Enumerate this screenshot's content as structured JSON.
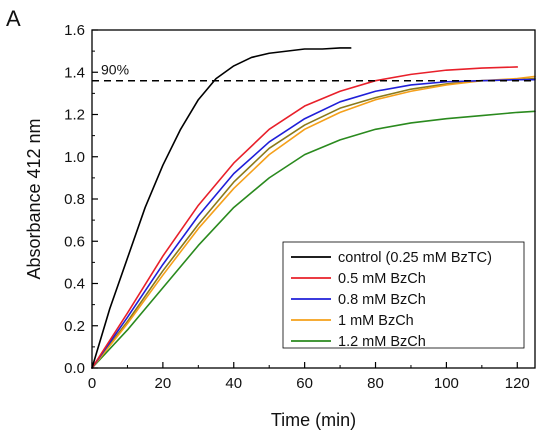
{
  "panel_label": "A",
  "chart_data": {
    "type": "line",
    "xlabel": "Time (min)",
    "ylabel": "Absorbance 412 nm",
    "xlim": [
      0,
      125
    ],
    "ylim": [
      0.0,
      1.6
    ],
    "xticks": [
      0,
      20,
      40,
      60,
      80,
      100,
      120
    ],
    "yticks": [
      0.0,
      0.2,
      0.4,
      0.6,
      0.8,
      1.0,
      1.2,
      1.4,
      1.6
    ],
    "ytick_labels": [
      "0.0",
      "0.2",
      "0.4",
      "0.6",
      "0.8",
      "1.0",
      "1.2",
      "1.4",
      "1.6"
    ],
    "grid": false,
    "legend_position": "bottom-right",
    "reference_line": {
      "y": 1.36,
      "style": "dashed",
      "label": "90%"
    },
    "series": [
      {
        "name": "control (0.25 mM BzTC)",
        "color": "#000000",
        "x": [
          0,
          5,
          10,
          15,
          20,
          25,
          30,
          35,
          40,
          45,
          50,
          55,
          60,
          65,
          70,
          73
        ],
        "y": [
          0.0,
          0.28,
          0.52,
          0.76,
          0.96,
          1.13,
          1.27,
          1.37,
          1.43,
          1.47,
          1.49,
          1.5,
          1.51,
          1.51,
          1.515,
          1.515
        ]
      },
      {
        "name": "0.5 mM BzCh",
        "color": "#e8202a",
        "x": [
          0,
          10,
          20,
          30,
          40,
          50,
          60,
          70,
          80,
          90,
          100,
          110,
          120
        ],
        "y": [
          0.0,
          0.26,
          0.53,
          0.77,
          0.97,
          1.13,
          1.24,
          1.31,
          1.36,
          1.39,
          1.41,
          1.42,
          1.425
        ]
      },
      {
        "name": "0.8 mM BzCh",
        "color": "#1f1fd8",
        "x": [
          0,
          10,
          20,
          30,
          40,
          50,
          60,
          70,
          80,
          90,
          100,
          110,
          120,
          125
        ],
        "y": [
          0.0,
          0.24,
          0.49,
          0.72,
          0.92,
          1.07,
          1.18,
          1.26,
          1.31,
          1.34,
          1.355,
          1.36,
          1.365,
          1.365
        ]
      },
      {
        "name": "1 mM BzCh",
        "color": "#f5a01a",
        "x": [
          0,
          10,
          20,
          30,
          40,
          50,
          60,
          70,
          80,
          90,
          100,
          110,
          120,
          125
        ],
        "y": [
          0.0,
          0.21,
          0.44,
          0.66,
          0.85,
          1.01,
          1.13,
          1.21,
          1.27,
          1.31,
          1.34,
          1.36,
          1.37,
          1.38
        ]
      },
      {
        "name": "1.2 mM BzCh",
        "color": "#2a8a1e",
        "x": [
          0,
          10,
          20,
          30,
          40,
          50,
          60,
          70,
          80,
          90,
          100,
          110,
          120,
          125
        ],
        "y": [
          0.0,
          0.18,
          0.38,
          0.58,
          0.76,
          0.9,
          1.01,
          1.08,
          1.13,
          1.16,
          1.18,
          1.195,
          1.21,
          1.215
        ]
      },
      {
        "name": "",
        "color": "#8a7a1a",
        "x": [
          0,
          10,
          20,
          30,
          40,
          50,
          60,
          70,
          80,
          90,
          100,
          110,
          120,
          125
        ],
        "y": [
          0.0,
          0.22,
          0.46,
          0.68,
          0.88,
          1.04,
          1.15,
          1.23,
          1.28,
          1.32,
          1.345,
          1.36,
          1.365,
          1.37
        ]
      }
    ]
  }
}
